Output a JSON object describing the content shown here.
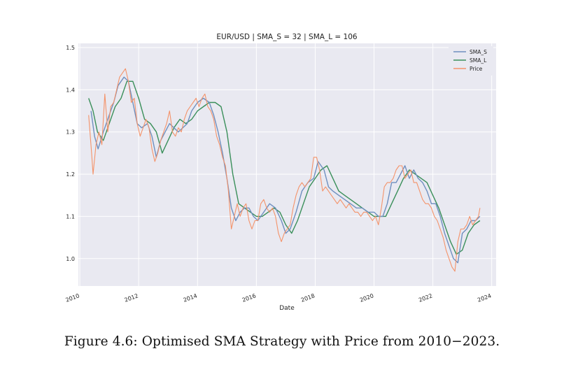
{
  "chart_data": {
    "type": "line",
    "title": "EUR/USD | SMA_S = 32 | SMA_L = 106",
    "xlabel": "Date",
    "ylabel": "",
    "xlim": [
      2009.95,
      2024.15
    ],
    "ylim": [
      0.935,
      1.51
    ],
    "x_ticks": [
      2010,
      2012,
      2014,
      2016,
      2018,
      2020,
      2022,
      2024
    ],
    "x_tick_labels": [
      "2010",
      "2012",
      "2014",
      "2016",
      "2018",
      "2020",
      "2022",
      "2024"
    ],
    "y_ticks": [
      1.0,
      1.1,
      1.2,
      1.3,
      1.4,
      1.5
    ],
    "y_tick_labels": [
      "1.0",
      "1.1",
      "1.2",
      "1.3",
      "1.4",
      "1.5"
    ],
    "grid": true,
    "legend_position": "top-right",
    "series": [
      {
        "name": "SMA_S",
        "color": "#6f8fbf",
        "points": [
          [
            2010.38,
            1.35
          ],
          [
            2010.5,
            1.29
          ],
          [
            2010.62,
            1.26
          ],
          [
            2010.8,
            1.3
          ],
          [
            2011.0,
            1.34
          ],
          [
            2011.15,
            1.37
          ],
          [
            2011.3,
            1.41
          ],
          [
            2011.5,
            1.43
          ],
          [
            2011.65,
            1.42
          ],
          [
            2011.8,
            1.37
          ],
          [
            2011.95,
            1.32
          ],
          [
            2012.1,
            1.31
          ],
          [
            2012.3,
            1.32
          ],
          [
            2012.45,
            1.29
          ],
          [
            2012.6,
            1.24
          ],
          [
            2012.75,
            1.28
          ],
          [
            2012.9,
            1.3
          ],
          [
            2013.05,
            1.32
          ],
          [
            2013.2,
            1.31
          ],
          [
            2013.35,
            1.3
          ],
          [
            2013.5,
            1.31
          ],
          [
            2013.65,
            1.32
          ],
          [
            2013.8,
            1.35
          ],
          [
            2014.0,
            1.37
          ],
          [
            2014.2,
            1.38
          ],
          [
            2014.4,
            1.37
          ],
          [
            2014.55,
            1.34
          ],
          [
            2014.7,
            1.3
          ],
          [
            2014.85,
            1.25
          ],
          [
            2015.0,
            1.19
          ],
          [
            2015.15,
            1.12
          ],
          [
            2015.3,
            1.09
          ],
          [
            2015.45,
            1.11
          ],
          [
            2015.6,
            1.12
          ],
          [
            2015.75,
            1.12
          ],
          [
            2015.9,
            1.1
          ],
          [
            2016.05,
            1.09
          ],
          [
            2016.25,
            1.11
          ],
          [
            2016.45,
            1.13
          ],
          [
            2016.65,
            1.12
          ],
          [
            2016.85,
            1.09
          ],
          [
            2017.0,
            1.06
          ],
          [
            2017.15,
            1.07
          ],
          [
            2017.35,
            1.11
          ],
          [
            2017.55,
            1.16
          ],
          [
            2017.75,
            1.18
          ],
          [
            2017.95,
            1.19
          ],
          [
            2018.1,
            1.23
          ],
          [
            2018.3,
            1.21
          ],
          [
            2018.45,
            1.17
          ],
          [
            2018.6,
            1.16
          ],
          [
            2018.8,
            1.15
          ],
          [
            2019.0,
            1.14
          ],
          [
            2019.2,
            1.13
          ],
          [
            2019.4,
            1.12
          ],
          [
            2019.6,
            1.12
          ],
          [
            2019.8,
            1.11
          ],
          [
            2020.0,
            1.11
          ],
          [
            2020.15,
            1.1
          ],
          [
            2020.3,
            1.1
          ],
          [
            2020.45,
            1.13
          ],
          [
            2020.6,
            1.18
          ],
          [
            2020.75,
            1.18
          ],
          [
            2020.9,
            1.2
          ],
          [
            2021.05,
            1.22
          ],
          [
            2021.2,
            1.19
          ],
          [
            2021.35,
            1.21
          ],
          [
            2021.5,
            1.19
          ],
          [
            2021.65,
            1.18
          ],
          [
            2021.8,
            1.16
          ],
          [
            2021.95,
            1.13
          ],
          [
            2022.1,
            1.13
          ],
          [
            2022.25,
            1.1
          ],
          [
            2022.4,
            1.06
          ],
          [
            2022.55,
            1.03
          ],
          [
            2022.7,
            1.0
          ],
          [
            2022.85,
            0.99
          ],
          [
            2023.0,
            1.06
          ],
          [
            2023.15,
            1.07
          ],
          [
            2023.3,
            1.09
          ],
          [
            2023.45,
            1.09
          ],
          [
            2023.6,
            1.1
          ]
        ]
      },
      {
        "name": "SMA_L",
        "color": "#3a8f5a",
        "points": [
          [
            2010.3,
            1.38
          ],
          [
            2010.45,
            1.35
          ],
          [
            2010.6,
            1.3
          ],
          [
            2010.8,
            1.28
          ],
          [
            2011.0,
            1.32
          ],
          [
            2011.2,
            1.36
          ],
          [
            2011.4,
            1.38
          ],
          [
            2011.6,
            1.42
          ],
          [
            2011.8,
            1.42
          ],
          [
            2012.0,
            1.38
          ],
          [
            2012.2,
            1.33
          ],
          [
            2012.4,
            1.32
          ],
          [
            2012.6,
            1.3
          ],
          [
            2012.8,
            1.25
          ],
          [
            2013.0,
            1.28
          ],
          [
            2013.2,
            1.31
          ],
          [
            2013.4,
            1.33
          ],
          [
            2013.6,
            1.32
          ],
          [
            2013.8,
            1.33
          ],
          [
            2014.0,
            1.35
          ],
          [
            2014.2,
            1.36
          ],
          [
            2014.4,
            1.37
          ],
          [
            2014.6,
            1.37
          ],
          [
            2014.8,
            1.36
          ],
          [
            2015.0,
            1.3
          ],
          [
            2015.2,
            1.2
          ],
          [
            2015.4,
            1.13
          ],
          [
            2015.6,
            1.12
          ],
          [
            2015.8,
            1.11
          ],
          [
            2016.0,
            1.1
          ],
          [
            2016.2,
            1.1
          ],
          [
            2016.4,
            1.11
          ],
          [
            2016.6,
            1.12
          ],
          [
            2016.8,
            1.11
          ],
          [
            2017.0,
            1.08
          ],
          [
            2017.2,
            1.06
          ],
          [
            2017.4,
            1.09
          ],
          [
            2017.6,
            1.13
          ],
          [
            2017.8,
            1.17
          ],
          [
            2018.0,
            1.19
          ],
          [
            2018.2,
            1.21
          ],
          [
            2018.4,
            1.22
          ],
          [
            2018.6,
            1.19
          ],
          [
            2018.8,
            1.16
          ],
          [
            2019.0,
            1.15
          ],
          [
            2019.2,
            1.14
          ],
          [
            2019.4,
            1.13
          ],
          [
            2019.6,
            1.12
          ],
          [
            2019.8,
            1.11
          ],
          [
            2020.0,
            1.1
          ],
          [
            2020.2,
            1.1
          ],
          [
            2020.4,
            1.1
          ],
          [
            2020.6,
            1.13
          ],
          [
            2020.8,
            1.16
          ],
          [
            2021.0,
            1.19
          ],
          [
            2021.2,
            1.21
          ],
          [
            2021.4,
            1.2
          ],
          [
            2021.6,
            1.19
          ],
          [
            2021.8,
            1.18
          ],
          [
            2022.0,
            1.15
          ],
          [
            2022.2,
            1.12
          ],
          [
            2022.4,
            1.08
          ],
          [
            2022.6,
            1.04
          ],
          [
            2022.8,
            1.01
          ],
          [
            2023.0,
            1.02
          ],
          [
            2023.2,
            1.06
          ],
          [
            2023.4,
            1.08
          ],
          [
            2023.6,
            1.09
          ]
        ]
      },
      {
        "name": "Price",
        "color": "#f4936a",
        "points": [
          [
            2010.3,
            1.34
          ],
          [
            2010.4,
            1.25
          ],
          [
            2010.45,
            1.2
          ],
          [
            2010.55,
            1.27
          ],
          [
            2010.65,
            1.3
          ],
          [
            2010.75,
            1.27
          ],
          [
            2010.85,
            1.39
          ],
          [
            2010.95,
            1.3
          ],
          [
            2011.05,
            1.36
          ],
          [
            2011.15,
            1.37
          ],
          [
            2011.25,
            1.4
          ],
          [
            2011.35,
            1.43
          ],
          [
            2011.45,
            1.44
          ],
          [
            2011.55,
            1.45
          ],
          [
            2011.65,
            1.42
          ],
          [
            2011.75,
            1.37
          ],
          [
            2011.85,
            1.38
          ],
          [
            2011.95,
            1.32
          ],
          [
            2012.05,
            1.29
          ],
          [
            2012.15,
            1.31
          ],
          [
            2012.25,
            1.33
          ],
          [
            2012.35,
            1.31
          ],
          [
            2012.45,
            1.26
          ],
          [
            2012.55,
            1.23
          ],
          [
            2012.65,
            1.25
          ],
          [
            2012.75,
            1.28
          ],
          [
            2012.85,
            1.3
          ],
          [
            2012.95,
            1.32
          ],
          [
            2013.05,
            1.35
          ],
          [
            2013.15,
            1.3
          ],
          [
            2013.25,
            1.29
          ],
          [
            2013.35,
            1.31
          ],
          [
            2013.45,
            1.3
          ],
          [
            2013.55,
            1.33
          ],
          [
            2013.65,
            1.35
          ],
          [
            2013.75,
            1.36
          ],
          [
            2013.85,
            1.37
          ],
          [
            2013.95,
            1.38
          ],
          [
            2014.05,
            1.36
          ],
          [
            2014.15,
            1.38
          ],
          [
            2014.25,
            1.39
          ],
          [
            2014.35,
            1.36
          ],
          [
            2014.45,
            1.35
          ],
          [
            2014.55,
            1.33
          ],
          [
            2014.65,
            1.29
          ],
          [
            2014.75,
            1.27
          ],
          [
            2014.85,
            1.24
          ],
          [
            2014.95,
            1.22
          ],
          [
            2015.05,
            1.16
          ],
          [
            2015.15,
            1.07
          ],
          [
            2015.25,
            1.1
          ],
          [
            2015.35,
            1.13
          ],
          [
            2015.45,
            1.1
          ],
          [
            2015.55,
            1.12
          ],
          [
            2015.65,
            1.13
          ],
          [
            2015.75,
            1.09
          ],
          [
            2015.85,
            1.07
          ],
          [
            2015.95,
            1.09
          ],
          [
            2016.05,
            1.09
          ],
          [
            2016.15,
            1.13
          ],
          [
            2016.25,
            1.14
          ],
          [
            2016.35,
            1.12
          ],
          [
            2016.45,
            1.11
          ],
          [
            2016.55,
            1.12
          ],
          [
            2016.65,
            1.1
          ],
          [
            2016.75,
            1.06
          ],
          [
            2016.85,
            1.04
          ],
          [
            2016.95,
            1.06
          ],
          [
            2017.05,
            1.07
          ],
          [
            2017.15,
            1.08
          ],
          [
            2017.25,
            1.12
          ],
          [
            2017.35,
            1.15
          ],
          [
            2017.45,
            1.17
          ],
          [
            2017.55,
            1.18
          ],
          [
            2017.65,
            1.17
          ],
          [
            2017.75,
            1.18
          ],
          [
            2017.85,
            1.19
          ],
          [
            2017.95,
            1.24
          ],
          [
            2018.05,
            1.24
          ],
          [
            2018.15,
            1.21
          ],
          [
            2018.25,
            1.16
          ],
          [
            2018.35,
            1.17
          ],
          [
            2018.45,
            1.16
          ],
          [
            2018.55,
            1.15
          ],
          [
            2018.65,
            1.14
          ],
          [
            2018.75,
            1.13
          ],
          [
            2018.85,
            1.14
          ],
          [
            2018.95,
            1.13
          ],
          [
            2019.05,
            1.12
          ],
          [
            2019.15,
            1.13
          ],
          [
            2019.25,
            1.12
          ],
          [
            2019.35,
            1.11
          ],
          [
            2019.45,
            1.11
          ],
          [
            2019.55,
            1.1
          ],
          [
            2019.65,
            1.11
          ],
          [
            2019.75,
            1.11
          ],
          [
            2019.85,
            1.1
          ],
          [
            2019.95,
            1.09
          ],
          [
            2020.05,
            1.1
          ],
          [
            2020.15,
            1.08
          ],
          [
            2020.25,
            1.12
          ],
          [
            2020.35,
            1.17
          ],
          [
            2020.45,
            1.18
          ],
          [
            2020.55,
            1.18
          ],
          [
            2020.65,
            1.19
          ],
          [
            2020.75,
            1.21
          ],
          [
            2020.85,
            1.22
          ],
          [
            2020.95,
            1.22
          ],
          [
            2021.05,
            1.19
          ],
          [
            2021.15,
            1.2
          ],
          [
            2021.25,
            1.21
          ],
          [
            2021.35,
            1.18
          ],
          [
            2021.45,
            1.18
          ],
          [
            2021.55,
            1.16
          ],
          [
            2021.65,
            1.14
          ],
          [
            2021.75,
            1.13
          ],
          [
            2021.85,
            1.13
          ],
          [
            2021.95,
            1.12
          ],
          [
            2022.05,
            1.1
          ],
          [
            2022.15,
            1.09
          ],
          [
            2022.25,
            1.07
          ],
          [
            2022.35,
            1.05
          ],
          [
            2022.45,
            1.02
          ],
          [
            2022.55,
            1.0
          ],
          [
            2022.65,
            0.98
          ],
          [
            2022.75,
            0.97
          ],
          [
            2022.85,
            1.04
          ],
          [
            2022.95,
            1.07
          ],
          [
            2023.05,
            1.07
          ],
          [
            2023.15,
            1.08
          ],
          [
            2023.25,
            1.1
          ],
          [
            2023.35,
            1.08
          ],
          [
            2023.45,
            1.09
          ],
          [
            2023.55,
            1.1
          ],
          [
            2023.6,
            1.12
          ]
        ]
      }
    ]
  },
  "caption": "Figure 4.6: Optimised SMA Strategy with Price from 2010−2023.",
  "colors": {
    "plot_background": "#e9e9f1",
    "grid": "#ffffff",
    "text": "#222222"
  }
}
